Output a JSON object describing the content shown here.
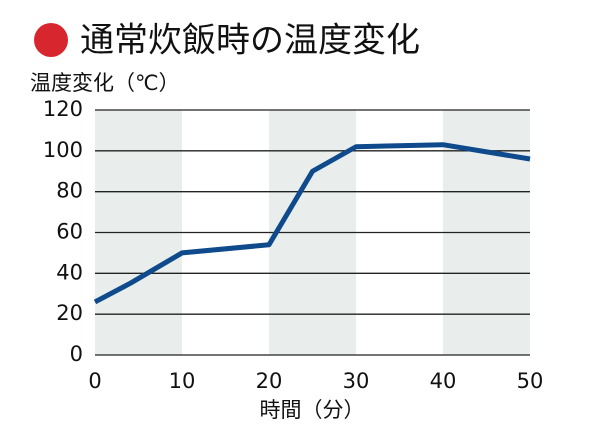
{
  "chart_data": {
    "type": "line",
    "title": "通常炊飯時の温度変化",
    "y_label": "温度変化（℃）",
    "x_label": "時間（分）",
    "x": [
      0,
      4,
      10,
      20,
      25,
      30,
      40,
      50
    ],
    "series": [
      {
        "name": "温度",
        "color": "#0f4a8c",
        "values": [
          26,
          35,
          50,
          54,
          90,
          102,
          103,
          96
        ]
      }
    ],
    "xlim": [
      0,
      50
    ],
    "xticks": [
      0,
      10,
      20,
      30,
      40,
      50
    ],
    "ylim": [
      0,
      120
    ],
    "yticks": [
      0,
      20,
      40,
      60,
      80,
      100,
      120
    ],
    "grid": true,
    "marker_color": "#d7262d",
    "band_color": "#e9eeec"
  }
}
